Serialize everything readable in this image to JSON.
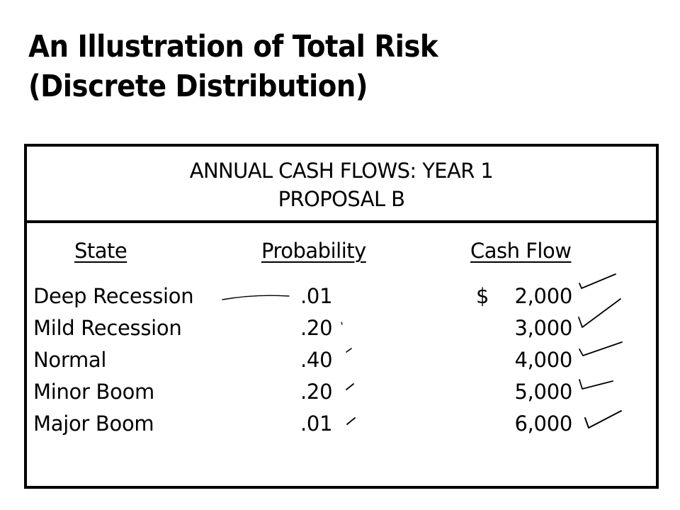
{
  "slide": {
    "title_line1": "An Illustration of Total Risk",
    "title_line2": "(Discrete Distribution)"
  },
  "table": {
    "header_line1": "ANNUAL CASH FLOWS:  YEAR 1",
    "header_line2": "PROPOSAL B",
    "columns": {
      "state": "State",
      "probability": "Probability",
      "cash_flow": "Cash Flow"
    },
    "currency_symbol": "$",
    "rows": [
      {
        "state": "Deep Recession",
        "probability": ".01",
        "cash_flow": "2,000"
      },
      {
        "state": "Mild Recession",
        "probability": ".20",
        "cash_flow": "3,000"
      },
      {
        "state": "Normal",
        "probability": ".40",
        "cash_flow": "4,000"
      },
      {
        "state": "Minor Boom",
        "probability": ".20",
        "cash_flow": "5,000"
      },
      {
        "state": "Major Boom",
        "probability": ".01",
        "cash_flow": "6,000"
      }
    ]
  }
}
